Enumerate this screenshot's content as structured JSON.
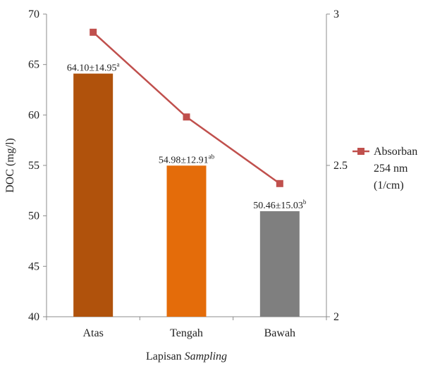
{
  "chart_data": {
    "type": "bar",
    "categories": [
      "Atas",
      "Tengah",
      "Bawah"
    ],
    "bars": {
      "name": "DOC (mg/l)",
      "values": [
        64.1,
        54.98,
        50.46
      ],
      "labels": [
        {
          "main": "64.10±14.95",
          "sup": "a"
        },
        {
          "main": "54.98±12.91",
          "sup": "ab"
        },
        {
          "main": "50.46±15.03",
          "sup": "b"
        }
      ],
      "colors": [
        "#B0520C",
        "#E46C0A",
        "#7F7F7F"
      ]
    },
    "line": {
      "name_lines": [
        "Absorban",
        "254 nm",
        "(1/cm)"
      ],
      "values": [
        2.94,
        2.66,
        2.44
      ],
      "color": "#C0504D"
    },
    "y_left": {
      "label": "DOC (mg/l)",
      "min": 40,
      "max": 70,
      "ticks": [
        40,
        45,
        50,
        55,
        60,
        65,
        70
      ]
    },
    "y_right": {
      "min": 2,
      "max": 3,
      "ticks": [
        2,
        2.5,
        3
      ],
      "tick_labels": [
        "2",
        "2.5",
        "3"
      ]
    },
    "xlabel": {
      "text": "Lapisan ",
      "italic": "Sampling"
    },
    "legend_position": "right",
    "grid": false
  }
}
